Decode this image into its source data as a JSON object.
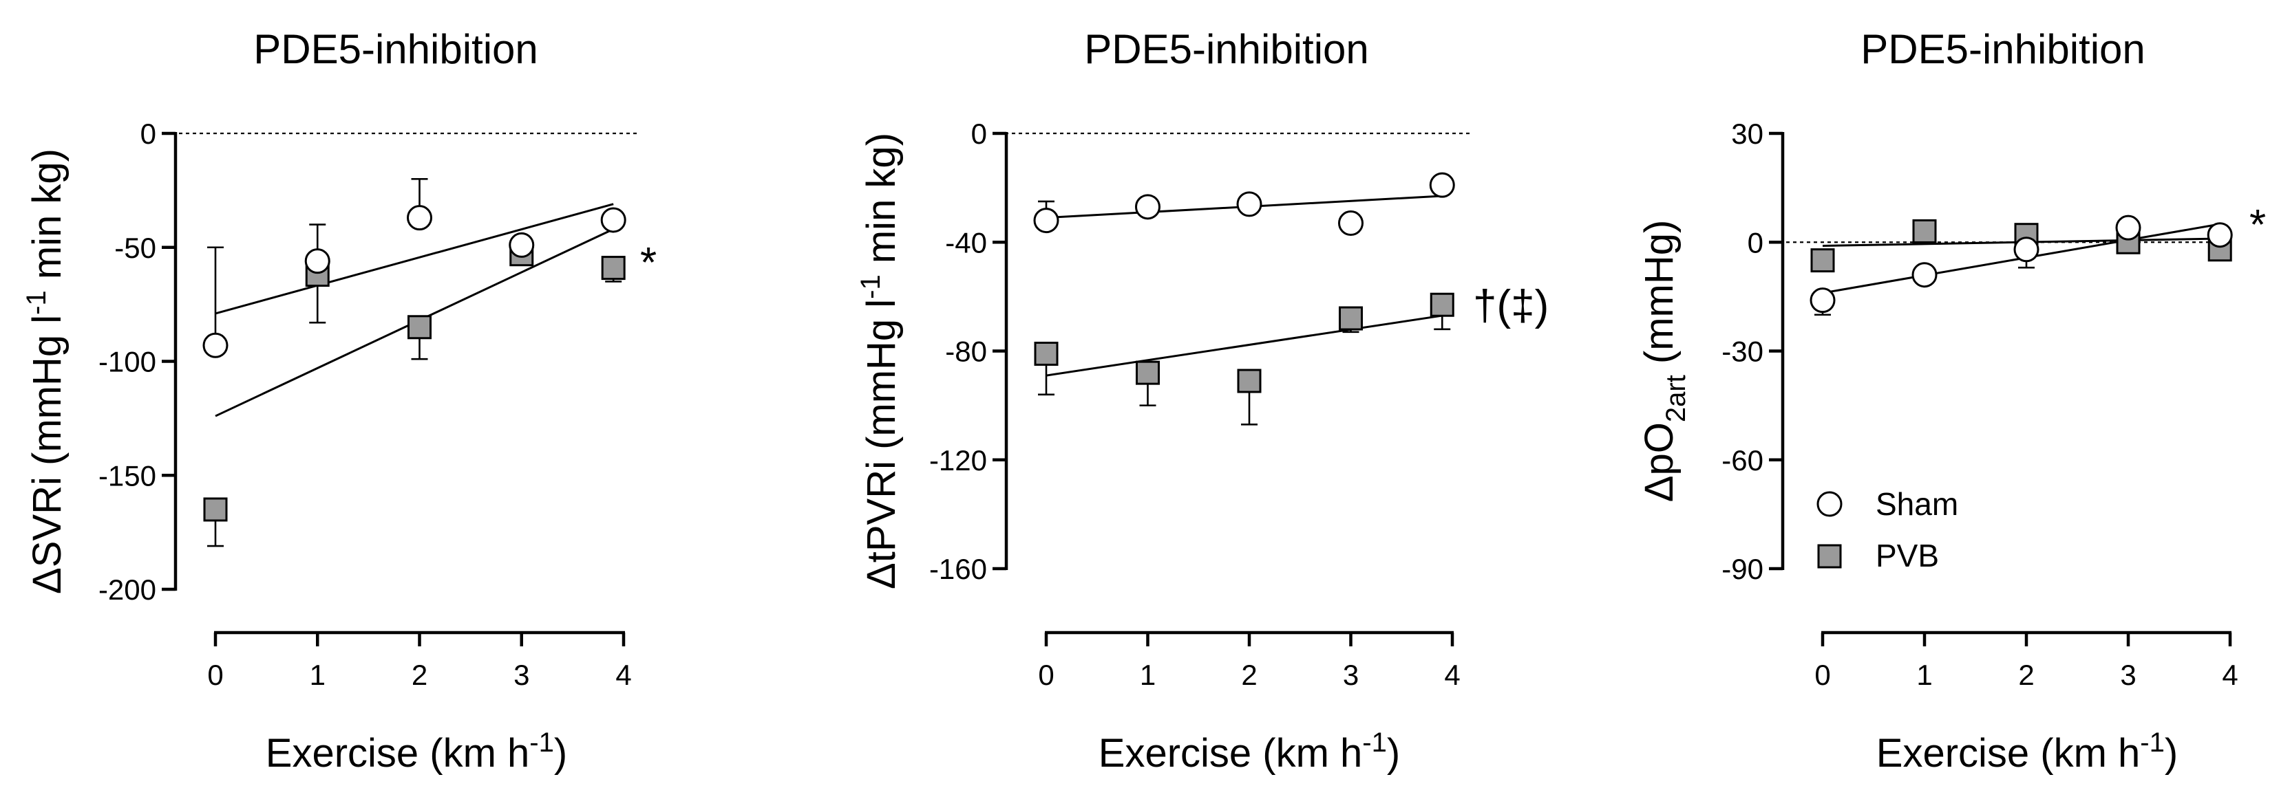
{
  "chart_data": [
    {
      "type": "scatter",
      "title": "PDE5-inhibition",
      "ylabel": {
        "main": "ΔSVRi (mmHg l",
        "sup": "-1",
        "rest": " min kg)"
      },
      "xlabel": {
        "main": "Exercise (km h",
        "sup": "-1",
        "rest": ")"
      },
      "x_ticks": [
        0,
        1,
        2,
        3,
        4
      ],
      "y_ticks": [
        0,
        -50,
        -100,
        -150,
        -200
      ],
      "xlim": [
        0,
        4
      ],
      "ylim": [
        -200,
        0
      ],
      "x_axis_at_y": -220,
      "significance": "*",
      "series": [
        {
          "name": "Sham",
          "x": [
            0,
            1,
            2,
            3,
            3.9
          ],
          "y": [
            -93,
            -56,
            -37,
            -49,
            -38
          ],
          "err": [
            {
              "i": 0,
              "y2": -50
            },
            {
              "i": 1,
              "y2": -40
            },
            {
              "i": 2,
              "y2": -20
            }
          ]
        },
        {
          "name": "PVB",
          "x": [
            0,
            1,
            2,
            3,
            3.9
          ],
          "y": [
            -165,
            -62,
            -85,
            -53,
            -59
          ],
          "err": [
            {
              "i": 0,
              "y2": -181
            },
            {
              "i": 1,
              "y2": -83
            },
            {
              "i": 2,
              "y2": -99
            },
            {
              "i": 4,
              "y2": -65
            }
          ]
        }
      ],
      "fits": [
        {
          "name": "Sham",
          "x": [
            0,
            3.9
          ],
          "y": [
            -79,
            -31
          ]
        },
        {
          "name": "PVB",
          "x": [
            0,
            3.9
          ],
          "y": [
            -124,
            -42
          ]
        }
      ]
    },
    {
      "type": "scatter",
      "title": "PDE5-inhibition",
      "ylabel": {
        "main": "ΔtPVRi (mmHg l",
        "sup": "-1",
        "rest": " min kg)"
      },
      "xlabel": {
        "main": "Exercise (km h",
        "sup": "-1",
        "rest": ")"
      },
      "x_ticks": [
        0,
        1,
        2,
        3,
        4
      ],
      "y_ticks": [
        0,
        -40,
        -80,
        -120,
        -160
      ],
      "xlim": [
        0,
        4
      ],
      "ylim": [
        -160,
        0
      ],
      "x_axis_at_y": -176,
      "significance": "†(‡)",
      "series": [
        {
          "name": "Sham",
          "x": [
            0,
            1,
            2,
            3,
            3.9
          ],
          "y": [
            -32,
            -27,
            -26,
            -33,
            -19
          ],
          "err": [
            {
              "i": 0,
              "y2": -25
            },
            {
              "i": 2,
              "y2": -23
            }
          ]
        },
        {
          "name": "PVB",
          "x": [
            0,
            1,
            2,
            3,
            3.9
          ],
          "y": [
            -81,
            -88,
            -91,
            -68,
            -63
          ],
          "err": [
            {
              "i": 0,
              "y2": -96
            },
            {
              "i": 1,
              "y2": -100
            },
            {
              "i": 2,
              "y2": -107
            },
            {
              "i": 3,
              "y2": -73
            },
            {
              "i": 4,
              "y2": -72
            }
          ]
        }
      ],
      "fits": [
        {
          "name": "Sham",
          "x": [
            0,
            3.9
          ],
          "y": [
            -31,
            -23
          ]
        },
        {
          "name": "PVB",
          "x": [
            0,
            3.9
          ],
          "y": [
            -89,
            -67
          ]
        }
      ]
    },
    {
      "type": "scatter",
      "title": "PDE5-inhibition",
      "ylabel": {
        "main": "ΔpO",
        "sub": "2art",
        "rest": " (mmHg)"
      },
      "xlabel": {
        "main": "Exercise (km h",
        "sup": "-1",
        "rest": ")"
      },
      "x_ticks": [
        0,
        1,
        2,
        3,
        4
      ],
      "y_ticks": [
        30,
        0,
        -30,
        -60,
        -90
      ],
      "xlim": [
        0,
        4
      ],
      "ylim": [
        -90,
        30
      ],
      "x_axis_at_y": -99,
      "significance": "*",
      "legend": {
        "placement": "lower-left",
        "entries": [
          "Sham",
          "PVB"
        ]
      },
      "series": [
        {
          "name": "Sham",
          "x": [
            0,
            1,
            2,
            3,
            3.9
          ],
          "y": [
            -16,
            -9,
            -2,
            4,
            2
          ],
          "err": [
            {
              "i": 0,
              "y2": -20
            },
            {
              "i": 2,
              "y2": -7
            }
          ]
        },
        {
          "name": "PVB",
          "x": [
            0,
            1,
            2,
            3,
            3.9
          ],
          "y": [
            -5,
            3,
            2,
            0,
            -2
          ],
          "err": []
        }
      ],
      "fits": [
        {
          "name": "Sham",
          "x": [
            0,
            3.9
          ],
          "y": [
            -14,
            5
          ]
        },
        {
          "name": "PVB",
          "x": [
            0,
            3.9
          ],
          "y": [
            -1,
            1
          ]
        }
      ]
    }
  ]
}
